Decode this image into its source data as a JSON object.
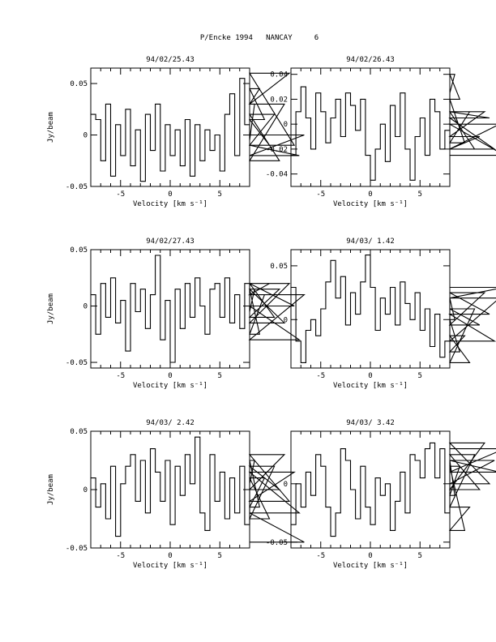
{
  "header": {
    "title": "P/Encke 1994   NANCAY     6"
  },
  "chart_data": [
    {
      "type": "line",
      "step": true,
      "title": "94/02/25.43",
      "xlabel": "Velocity [km s⁻¹]",
      "ylabel": "Jy/beam",
      "xlim": [
        -8,
        8
      ],
      "ylim": [
        -0.05,
        0.065
      ],
      "xticks": [
        -5,
        0,
        5
      ],
      "xtick_labels": [
        "-5",
        "0",
        "5"
      ],
      "yticks": [
        -0.05,
        0,
        0.05
      ],
      "ytick_labels": [
        "-0.05",
        "0",
        "0.05"
      ],
      "x_start": -8,
      "x_step": 0.5,
      "series": [
        {
          "values": [
            0.02,
            0.015,
            -0.025,
            0.03,
            -0.04,
            0.01,
            -0.02,
            0.025,
            -0.03,
            0.005,
            -0.045,
            0.02,
            -0.015,
            0.03,
            -0.035,
            0.01,
            -0.02,
            0.005,
            -0.03,
            0.015,
            -0.04,
            0.01,
            -0.025,
            0.005,
            -0.015,
            0.0,
            -0.035,
            0.02,
            0.04,
            -0.02,
            0.055,
            0.01,
            -0.005,
            0.03,
            0.045,
            0.015,
            -0.01,
            0.02,
            -0.025,
            0.03,
            0.06,
            -0.01,
            -0.02,
            0.0
          ]
        }
      ]
    },
    {
      "type": "line",
      "step": true,
      "title": "94/02/26.43",
      "xlabel": "Velocity [km s⁻¹]",
      "ylabel": "",
      "xlim": [
        -8,
        8
      ],
      "ylim": [
        -0.05,
        0.045
      ],
      "xticks": [
        -5,
        0,
        5
      ],
      "xtick_labels": [
        "-5",
        "0",
        "5"
      ],
      "yticks": [
        -0.04,
        -0.02,
        0,
        0.02,
        0.04
      ],
      "ytick_labels": [
        "-0.04",
        "-0.02",
        "0",
        "0.02",
        "0.04"
      ],
      "x_start": -8,
      "x_step": 0.5,
      "series": [
        {
          "values": [
            -0.025,
            0.01,
            0.03,
            0.005,
            -0.02,
            0.025,
            0.01,
            -0.015,
            0.005,
            0.02,
            -0.01,
            0.025,
            0.015,
            -0.005,
            0.02,
            -0.025,
            -0.045,
            -0.02,
            0.0,
            -0.03,
            0.015,
            -0.01,
            0.025,
            -0.02,
            -0.045,
            -0.01,
            0.005,
            -0.025,
            0.02,
            0.01,
            -0.02,
            -0.005,
            0.025,
            0.04,
            0.02,
            -0.015,
            0.01,
            -0.02,
            -0.01,
            0.01,
            0.005,
            -0.02,
            0.0,
            -0.025
          ]
        }
      ]
    },
    {
      "type": "line",
      "step": true,
      "title": "94/02/27.43",
      "xlabel": "Velocity [km s⁻¹]",
      "ylabel": "Jy/beam",
      "xlim": [
        -8,
        8
      ],
      "ylim": [
        -0.055,
        0.05
      ],
      "xticks": [
        -5,
        0,
        5
      ],
      "xtick_labels": [
        "-5",
        "0",
        "5"
      ],
      "yticks": [
        -0.05,
        0,
        0.05
      ],
      "ytick_labels": [
        "-0.05",
        "0",
        "0.05"
      ],
      "x_start": -8,
      "x_step": 0.5,
      "series": [
        {
          "values": [
            0.01,
            -0.025,
            0.02,
            -0.01,
            0.025,
            -0.015,
            0.005,
            -0.04,
            0.02,
            -0.005,
            0.015,
            -0.02,
            0.01,
            0.045,
            -0.03,
            0.005,
            -0.05,
            0.015,
            -0.02,
            0.02,
            -0.01,
            0.025,
            0.0,
            -0.025,
            0.015,
            0.02,
            -0.01,
            0.025,
            -0.015,
            0.01,
            -0.02,
            0.02,
            -0.005,
            0.015,
            -0.025,
            0.01,
            0.02,
            -0.01,
            0.015,
            -0.015,
            0.02,
            0.0,
            -0.03,
            0.01
          ]
        }
      ]
    },
    {
      "type": "line",
      "step": true,
      "title": "94/03/ 1.42",
      "xlabel": "Velocity [km s⁻¹]",
      "ylabel": "",
      "xlim": [
        -8,
        8
      ],
      "ylim": [
        -0.045,
        0.065
      ],
      "xticks": [
        -5,
        0,
        5
      ],
      "xtick_labels": [
        "-5",
        "0",
        "5"
      ],
      "yticks": [
        0,
        0.05
      ],
      "ytick_labels": [
        "0",
        "0.05"
      ],
      "x_start": -8,
      "x_step": 0.5,
      "series": [
        {
          "values": [
            0.03,
            -0.02,
            -0.04,
            -0.01,
            0.0,
            -0.015,
            0.01,
            0.035,
            0.055,
            0.02,
            0.04,
            -0.005,
            0.025,
            0.005,
            0.035,
            0.06,
            0.03,
            -0.01,
            0.02,
            0.005,
            0.03,
            -0.005,
            0.035,
            0.015,
            0.0,
            0.025,
            -0.01,
            0.01,
            -0.025,
            0.005,
            -0.035,
            -0.02,
            0.02,
            0.0,
            -0.03,
            -0.015,
            -0.04,
            0.01,
            -0.005,
            0.025,
            0.005,
            -0.02,
            0.02,
            0.03
          ]
        }
      ]
    },
    {
      "type": "line",
      "step": true,
      "title": "94/03/ 2.42",
      "xlabel": "Velocity [km s⁻¹]",
      "ylabel": "Jy/beam",
      "xlim": [
        -8,
        8
      ],
      "ylim": [
        -0.05,
        0.05
      ],
      "xticks": [
        -5,
        0,
        5
      ],
      "xtick_labels": [
        "-5",
        "0",
        "5"
      ],
      "yticks": [
        -0.05,
        0,
        0.05
      ],
      "ytick_labels": [
        "-0.05",
        "0",
        "0.05"
      ],
      "x_start": -8,
      "x_step": 0.5,
      "series": [
        {
          "values": [
            0.01,
            -0.015,
            0.005,
            -0.025,
            0.02,
            -0.04,
            0.005,
            0.02,
            0.03,
            -0.01,
            0.025,
            -0.02,
            0.035,
            0.015,
            -0.01,
            0.025,
            -0.03,
            0.02,
            -0.005,
            0.03,
            0.005,
            0.045,
            -0.02,
            -0.035,
            0.03,
            -0.01,
            0.015,
            -0.025,
            0.01,
            -0.02,
            0.02,
            -0.03,
            0.005,
            0.025,
            -0.015,
            0.01,
            -0.025,
            0.02,
            0.0,
            0.03,
            -0.01,
            0.015,
            -0.02,
            -0.045
          ]
        }
      ]
    },
    {
      "type": "line",
      "step": true,
      "title": "94/03/ 3.42",
      "xlabel": "Velocity [km s⁻¹]",
      "ylabel": "",
      "xlim": [
        -8,
        8
      ],
      "ylim": [
        -0.055,
        0.045
      ],
      "xticks": [
        -5,
        0,
        5
      ],
      "xtick_labels": [
        "-5",
        "0",
        "5"
      ],
      "yticks": [
        -0.05,
        0
      ],
      "ytick_labels": [
        "-0.05",
        "0"
      ],
      "x_start": -8,
      "x_step": 0.5,
      "series": [
        {
          "values": [
            -0.035,
            0.0,
            -0.02,
            0.01,
            -0.01,
            0.025,
            0.015,
            -0.02,
            -0.045,
            -0.025,
            0.03,
            0.02,
            -0.005,
            -0.03,
            0.015,
            -0.02,
            -0.035,
            0.005,
            -0.01,
            0.0,
            -0.04,
            -0.015,
            0.01,
            -0.025,
            0.025,
            0.02,
            0.005,
            0.03,
            0.035,
            0.005,
            0.03,
            -0.025,
            0.02,
            -0.01,
            0.015,
            -0.04,
            -0.02,
            0.025,
            -0.005,
            0.035,
            0.0,
            0.02,
            0.01,
            0.03
          ]
        }
      ]
    }
  ]
}
